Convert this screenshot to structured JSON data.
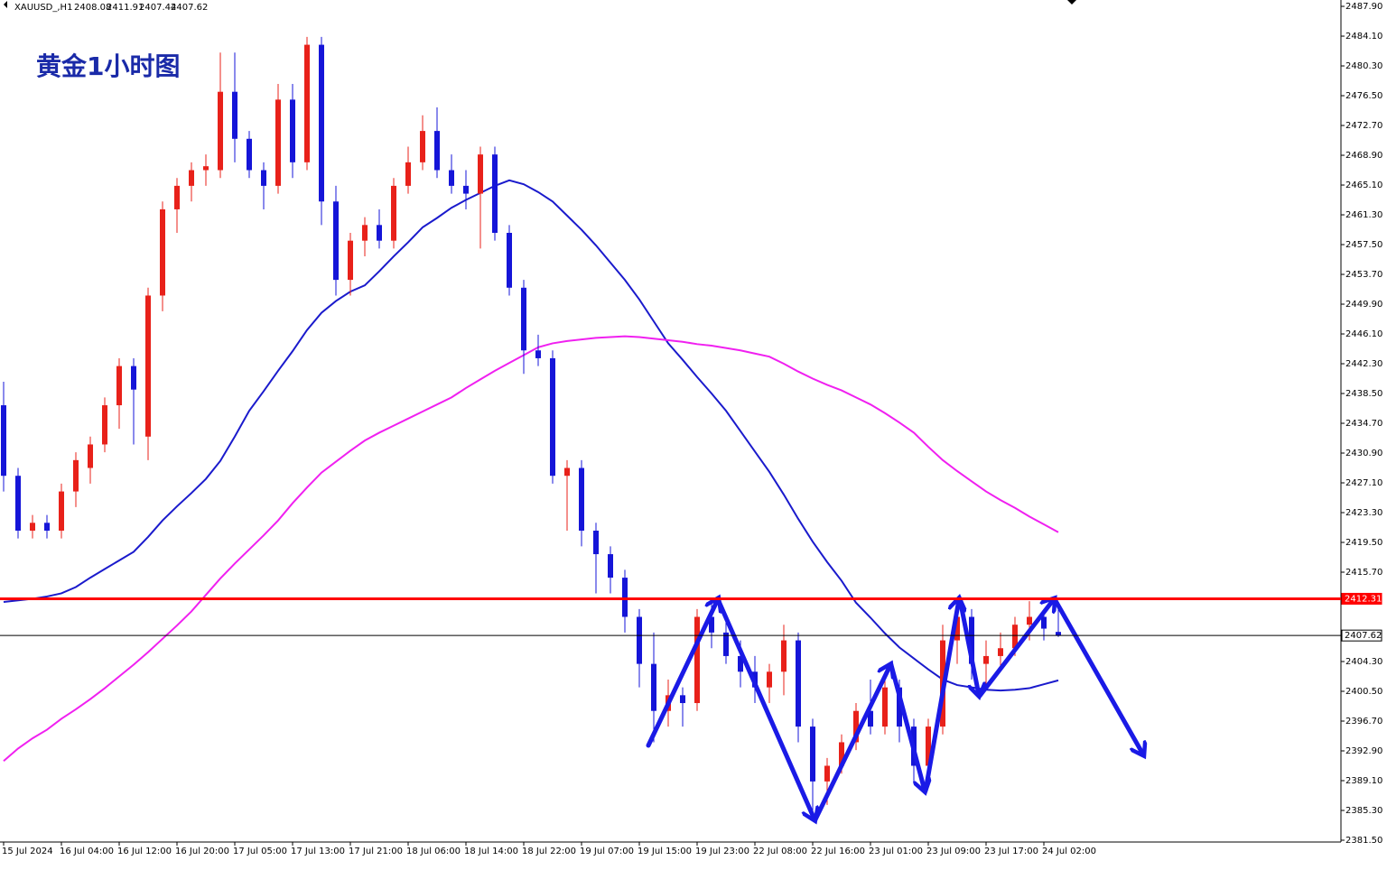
{
  "chart_data": {
    "type": "candlestick",
    "symbol": "XAUUSD_,H1",
    "annotation": "黄金1小时图",
    "up_color": "#e8211a",
    "down_color": "#1515d8",
    "ylim": [
      2381.27,
      2488.71
    ],
    "yticks": [
      {
        "value": 2487.9,
        "label": "2487.90"
      },
      {
        "value": 2484.1,
        "label": "2484.10"
      },
      {
        "value": 2480.3,
        "label": "2480.30"
      },
      {
        "value": 2476.5,
        "label": "2476.50"
      },
      {
        "value": 2472.7,
        "label": "2472.70"
      },
      {
        "value": 2468.9,
        "label": "2468.90"
      },
      {
        "value": 2465.1,
        "label": "2465.10"
      },
      {
        "value": 2461.3,
        "label": "2461.30"
      },
      {
        "value": 2457.5,
        "label": "2457.50"
      },
      {
        "value": 2453.7,
        "label": "2453.70"
      },
      {
        "value": 2449.9,
        "label": "2449.90"
      },
      {
        "value": 2446.1,
        "label": "2446.10"
      },
      {
        "value": 2442.3,
        "label": "2442.30"
      },
      {
        "value": 2438.5,
        "label": "2438.50"
      },
      {
        "value": 2434.7,
        "label": "2434.70"
      },
      {
        "value": 2430.9,
        "label": "2430.90"
      },
      {
        "value": 2427.1,
        "label": "2427.10"
      },
      {
        "value": 2423.3,
        "label": "2423.30"
      },
      {
        "value": 2419.5,
        "label": "2419.50"
      },
      {
        "value": 2415.7,
        "label": "2415.70"
      },
      {
        "value": 2404.3,
        "label": "2404.30"
      },
      {
        "value": 2400.5,
        "label": "2400.50"
      },
      {
        "value": 2396.7,
        "label": "2396.70"
      },
      {
        "value": 2392.9,
        "label": "2392.90"
      },
      {
        "value": 2389.1,
        "label": "2389.10"
      },
      {
        "value": 2385.3,
        "label": "2385.30"
      },
      {
        "value": 2381.5,
        "label": "2381.50"
      }
    ],
    "categories": [
      "15 Jul 2024",
      null,
      null,
      null,
      "16 Jul 04:00",
      null,
      null,
      null,
      "16 Jul 12:00",
      null,
      null,
      null,
      "16 Jul 20:00",
      null,
      null,
      null,
      "17 Jul 05:00",
      null,
      null,
      null,
      "17 Jul 13:00",
      null,
      null,
      null,
      "17 Jul 21:00",
      null,
      null,
      null,
      "18 Jul 06:00",
      null,
      null,
      null,
      "18 Jul 14:00",
      null,
      null,
      null,
      "18 Jul 22:00",
      null,
      null,
      null,
      "19 Jul 07:00",
      null,
      null,
      null,
      "19 Jul 15:00",
      null,
      null,
      null,
      "19 Jul 23:00",
      null,
      null,
      null,
      "22 Jul 08:00",
      null,
      null,
      null,
      "22 Jul 16:00",
      null,
      null,
      null,
      "23 Jul 01:00",
      null,
      null,
      null,
      "23 Jul 09:00",
      null,
      null,
      null,
      "23 Jul 17:00",
      null,
      null,
      null,
      "24 Jul 02:00",
      null
    ],
    "candles": [
      [
        2437,
        2440,
        2426,
        2428
      ],
      [
        2428,
        2429,
        2420,
        2421
      ],
      [
        2421,
        2423,
        2420,
        2422
      ],
      [
        2422,
        2423,
        2420,
        2421
      ],
      [
        2421,
        2427,
        2420,
        2426
      ],
      [
        2426,
        2431,
        2424,
        2430
      ],
      [
        2429,
        2433,
        2427,
        2432
      ],
      [
        2432,
        2438,
        2431,
        2437
      ],
      [
        2437,
        2443,
        2434,
        2442
      ],
      [
        2442,
        2443,
        2432,
        2439
      ],
      [
        2433,
        2452,
        2430,
        2451
      ],
      [
        2451,
        2463,
        2449,
        2462
      ],
      [
        2462,
        2466,
        2459,
        2465
      ],
      [
        2465,
        2468,
        2463,
        2467
      ],
      [
        2467,
        2469,
        2465,
        2467.5
      ],
      [
        2467,
        2482,
        2466,
        2477
      ],
      [
        2477,
        2482,
        2468,
        2471
      ],
      [
        2471,
        2472,
        2466,
        2467
      ],
      [
        2467,
        2468,
        2462,
        2465
      ],
      [
        2465,
        2478,
        2464,
        2476
      ],
      [
        2476,
        2478,
        2466,
        2468
      ],
      [
        2468,
        2484,
        2467,
        2483
      ],
      [
        2483,
        2484,
        2460,
        2463
      ],
      [
        2463,
        2465,
        2451,
        2453
      ],
      [
        2453,
        2459,
        2451,
        2458
      ],
      [
        2458,
        2461,
        2456,
        2460
      ],
      [
        2460,
        2462,
        2457,
        2458
      ],
      [
        2458,
        2466,
        2457,
        2465
      ],
      [
        2465,
        2470,
        2464,
        2468
      ],
      [
        2468,
        2474,
        2467,
        2472
      ],
      [
        2472,
        2475,
        2466,
        2467
      ],
      [
        2467,
        2469,
        2464,
        2465
      ],
      [
        2465,
        2467,
        2462,
        2464
      ],
      [
        2464,
        2470,
        2457,
        2469
      ],
      [
        2469,
        2470,
        2458,
        2459
      ],
      [
        2459,
        2460,
        2451,
        2452
      ],
      [
        2452,
        2453,
        2441,
        2444
      ],
      [
        2444,
        2446,
        2442,
        2443
      ],
      [
        2443,
        2444,
        2427,
        2428
      ],
      [
        2428,
        2430,
        2421,
        2429
      ],
      [
        2429,
        2430,
        2419,
        2421
      ],
      [
        2421,
        2422,
        2413,
        2418
      ],
      [
        2418,
        2419,
        2413,
        2415
      ],
      [
        2415,
        2416,
        2408,
        2410
      ],
      [
        2410,
        2411,
        2401,
        2404
      ],
      [
        2404,
        2408,
        2394,
        2398
      ],
      [
        2398,
        2402,
        2396,
        2400
      ],
      [
        2400,
        2401,
        2396,
        2399
      ],
      [
        2399,
        2411,
        2398,
        2410
      ],
      [
        2410,
        2412,
        2406,
        2408
      ],
      [
        2408,
        2410,
        2404,
        2405
      ],
      [
        2405,
        2407,
        2401,
        2403
      ],
      [
        2403,
        2405,
        2399,
        2401
      ],
      [
        2401,
        2404,
        2399,
        2403
      ],
      [
        2403,
        2409,
        2400,
        2407
      ],
      [
        2407,
        2408,
        2394,
        2396
      ],
      [
        2396,
        2397,
        2385,
        2389
      ],
      [
        2389,
        2392,
        2386,
        2391
      ],
      [
        2391,
        2395,
        2390,
        2394
      ],
      [
        2394,
        2399,
        2393,
        2398
      ],
      [
        2398,
        2402,
        2395,
        2396
      ],
      [
        2396,
        2403,
        2395,
        2401
      ],
      [
        2401,
        2402,
        2394,
        2396
      ],
      [
        2396,
        2397,
        2389,
        2391
      ],
      [
        2391,
        2397,
        2389,
        2396
      ],
      [
        2396,
        2409,
        2395,
        2407
      ],
      [
        2407,
        2412,
        2404,
        2410
      ],
      [
        2410,
        2411,
        2402,
        2404
      ],
      [
        2404,
        2407,
        2401,
        2405
      ],
      [
        2405,
        2408,
        2403,
        2406
      ],
      [
        2406,
        2410,
        2405,
        2409
      ],
      [
        2409,
        2412,
        2407,
        2410
      ],
      [
        2410,
        2411,
        2407,
        2408.5
      ],
      [
        2408.08,
        2411.91,
        2407.44,
        2407.62
      ]
    ],
    "lines": [
      {
        "color": "#1a1acc",
        "values": [
          2411.9,
          2412.1,
          2412.3,
          2412.6,
          2413.0,
          2413.8,
          2415.0,
          2416.1,
          2417.2,
          2418.3,
          2420.2,
          2422.3,
          2424.1,
          2425.8,
          2427.6,
          2429.9,
          2433.0,
          2436.3,
          2438.8,
          2441.4,
          2443.9,
          2446.6,
          2448.8,
          2450.3,
          2451.5,
          2452.3,
          2454.1,
          2456.0,
          2457.8,
          2459.7,
          2460.9,
          2462.2,
          2463.2,
          2464.1,
          2465.0,
          2465.7,
          2465.2,
          2464.2,
          2463.0,
          2461.2,
          2459.4,
          2457.4,
          2455.2,
          2453.0,
          2450.5,
          2447.7,
          2444.9,
          2442.8,
          2440.6,
          2438.5,
          2436.3,
          2433.7,
          2431.1,
          2428.5,
          2425.6,
          2422.5,
          2419.6,
          2417.0,
          2414.6,
          2411.8,
          2409.9,
          2407.9,
          2406.1,
          2404.7,
          2403.3,
          2402.0,
          2401.3,
          2401.0,
          2400.7,
          2400.6,
          2400.7,
          2400.9,
          2401.4,
          2401.9
        ]
      },
      {
        "color": "#f020f0",
        "values": [
          2391.6,
          2393.2,
          2394.5,
          2395.6,
          2397.0,
          2398.2,
          2399.5,
          2400.9,
          2402.4,
          2403.9,
          2405.5,
          2407.2,
          2408.9,
          2410.7,
          2412.8,
          2414.9,
          2416.8,
          2418.6,
          2420.4,
          2422.3,
          2424.5,
          2426.5,
          2428.4,
          2429.8,
          2431.2,
          2432.5,
          2433.5,
          2434.4,
          2435.3,
          2436.2,
          2437.1,
          2438.0,
          2439.2,
          2440.3,
          2441.4,
          2442.4,
          2443.4,
          2444.4,
          2444.9,
          2445.2,
          2445.4,
          2445.6,
          2445.7,
          2445.8,
          2445.7,
          2445.5,
          2445.3,
          2445.1,
          2444.8,
          2444.6,
          2444.3,
          2444.0,
          2443.6,
          2443.2,
          2442.3,
          2441.3,
          2440.4,
          2439.6,
          2438.9,
          2438.0,
          2437.1,
          2436.0,
          2434.8,
          2433.5,
          2431.7,
          2430.0,
          2428.6,
          2427.3,
          2426.0,
          2424.9,
          2423.9,
          2422.8,
          2421.8,
          2420.8
        ]
      }
    ],
    "levels": [
      {
        "value": 2412.31,
        "color": "#ff0000",
        "width": 3
      },
      {
        "value": 2407.62,
        "color": "#000000",
        "width": 1
      }
    ]
  }
}
